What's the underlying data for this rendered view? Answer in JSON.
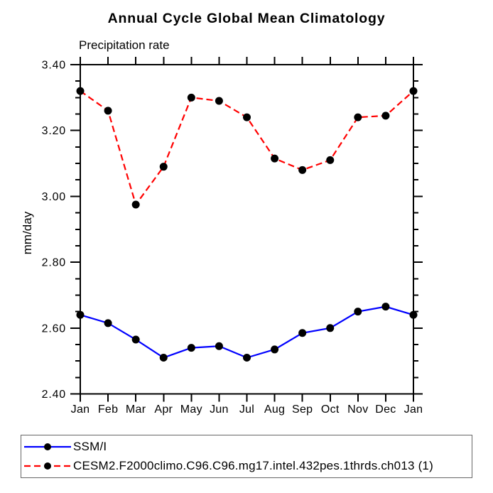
{
  "chart_data": {
    "type": "line",
    "title": "Annual Cycle Global Mean Climatology",
    "subtitle": "Precipitation rate",
    "ylabel": "mm/day",
    "categories": [
      "Jan",
      "Feb",
      "Mar",
      "Apr",
      "May",
      "Jun",
      "Jul",
      "Aug",
      "Sep",
      "Oct",
      "Nov",
      "Dec",
      "Jan"
    ],
    "ylim": [
      2.4,
      3.4
    ],
    "ytick_interval": 0.2,
    "ytick_minor_interval": 0.05,
    "ytick_labels": [
      "2.40",
      "2.60",
      "2.80",
      "3.00",
      "3.20",
      "3.40"
    ],
    "grid": false,
    "legend_position": "bottom-left",
    "axis_color": "#000000",
    "marker": "filled-circle",
    "marker_color": "#000000",
    "series": [
      {
        "name": "SSM/I",
        "color": "#0000ff",
        "line_style": "solid",
        "values": [
          2.64,
          2.615,
          2.565,
          2.51,
          2.54,
          2.545,
          2.51,
          2.535,
          2.585,
          2.6,
          2.65,
          2.665,
          2.64
        ]
      },
      {
        "name": "CESM2.F2000climo.C96.C96.mg17.intel.432pes.1thrds.ch013 (1)",
        "color": "#ff0000",
        "line_style": "dashed",
        "values": [
          3.32,
          3.26,
          2.975,
          3.09,
          3.3,
          3.29,
          3.24,
          3.115,
          3.08,
          3.11,
          3.24,
          3.245,
          3.32
        ]
      }
    ]
  }
}
